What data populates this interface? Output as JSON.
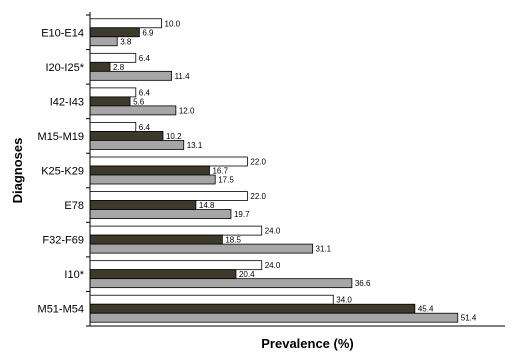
{
  "chart_data": {
    "type": "bar",
    "orientation": "horizontal",
    "xlabel": "Prevalence (%)",
    "ylabel": "Diagnoses",
    "xlim": [
      0,
      55
    ],
    "grid": false,
    "legend": "none",
    "categories": [
      "E10-E14",
      "I20-I25*",
      "I42-I43",
      "M15-M19",
      "K25-K29",
      "E78",
      "F32-F69",
      "I10*",
      "M51-M54"
    ],
    "series": [
      {
        "color": "#ffffff",
        "values": [
          10.0,
          6.4,
          6.4,
          6.4,
          22.0,
          22.0,
          24.0,
          24.0,
          34.0
        ],
        "labels": [
          "10.0",
          "6.4",
          "6.4",
          "6.4",
          "22.0",
          "22.0",
          "24.0",
          "24.0",
          "34.0"
        ]
      },
      {
        "color": "#3d3a2c",
        "values": [
          6.9,
          2.8,
          5.6,
          10.2,
          16.7,
          14.8,
          18.5,
          20.4,
          45.4
        ],
        "labels": [
          "6.9",
          "2.8",
          "5.6",
          "10.2",
          "16.7",
          "14.8",
          "18.5",
          "20.4",
          "45.4"
        ]
      },
      {
        "color": "#a6a6a6",
        "values": [
          3.8,
          11.4,
          12.0,
          13.1,
          17.5,
          19.7,
          31.1,
          36.6,
          51.4
        ],
        "labels": [
          "3.8",
          "11.4",
          "12.0",
          "13.1",
          "17.5",
          "19.7",
          "31.1",
          "36.6",
          "51.4"
        ]
      }
    ]
  }
}
